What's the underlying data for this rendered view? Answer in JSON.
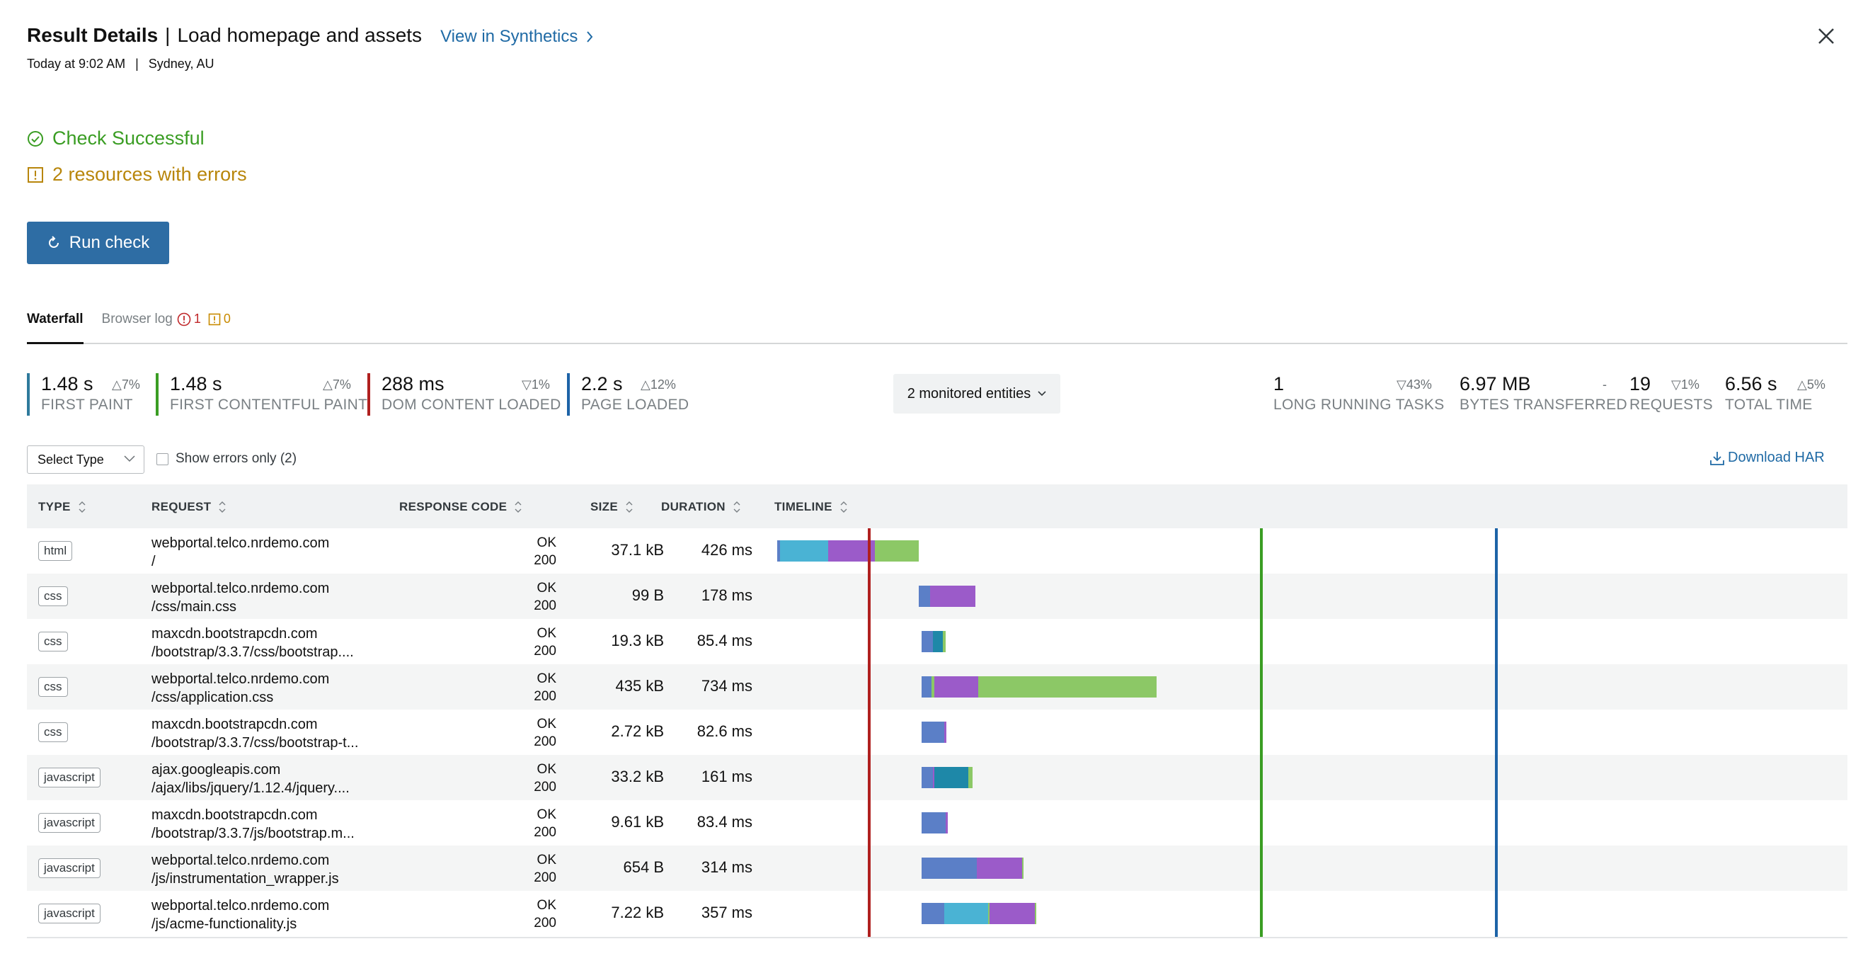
{
  "header": {
    "title": "Result Details",
    "separator": "|",
    "monitor_name": "Load homepage and assets",
    "link_label": "View in Synthetics",
    "timestamp": "Today at 9:02 AM",
    "pipe": "|",
    "location": "Sydney, AU"
  },
  "status": {
    "success_label": "Check Successful",
    "errors_label": "2 resources with errors",
    "success_color": "#3a9d23",
    "error_color": "#b8860b"
  },
  "run_button": {
    "label": "Run check"
  },
  "tabs": [
    {
      "label": "Waterfall"
    },
    {
      "label": "Browser log",
      "error_count": "1",
      "warning_count": "0"
    }
  ],
  "metrics": {
    "first_paint": {
      "value": "1.48 s",
      "delta": "7%",
      "label": "FIRST PAINT",
      "color": "#2f7a9c"
    },
    "first_contentful_paint": {
      "value": "1.48 s",
      "delta": "7%",
      "label": "FIRST CONTENTFUL PAINT",
      "color": "#3a9d23"
    },
    "dom_content_loaded": {
      "value": "288 ms",
      "delta": "1%",
      "label": "DOM CONTENT LOADED",
      "color": "#b0201f"
    },
    "page_loaded": {
      "value": "2.2 s",
      "delta": "12%",
      "label": "PAGE LOADED",
      "color": "#1d63a7"
    },
    "long_running_tasks": {
      "value": "1",
      "delta": "43%",
      "label": "LONG RUNNING TASKS"
    },
    "bytes_transferred": {
      "value": "6.97 MB",
      "delta": "-",
      "label": "BYTES TRANSFERRED"
    },
    "requests": {
      "value": "19",
      "delta": "1%",
      "label": "REQUESTS"
    },
    "total_time": {
      "value": "6.56 s",
      "delta": "5%",
      "label": "TOTAL TIME"
    }
  },
  "entities_button": {
    "label": "2 monitored entities"
  },
  "filters": {
    "select_type": "Select Type",
    "errors_only": "Show errors only (2)",
    "download_har": "Download HAR"
  },
  "table": {
    "columns": [
      "TYPE",
      "REQUEST",
      "RESPONSE CODE",
      "SIZE",
      "DURATION",
      "TIMELINE"
    ],
    "rows": [
      {
        "type": "html",
        "host": "webportal.telco.nrdemo.com",
        "path": "/",
        "status": "OK",
        "code": "200",
        "size": "37.1 kB",
        "duration": "426 ms"
      },
      {
        "type": "css",
        "host": "webportal.telco.nrdemo.com",
        "path": "/css/main.css",
        "status": "OK",
        "code": "200",
        "size": "99 B",
        "duration": "178 ms"
      },
      {
        "type": "css",
        "host": "maxcdn.bootstrapcdn.com",
        "path": "/bootstrap/3.3.7/css/bootstrap....",
        "status": "OK",
        "code": "200",
        "size": "19.3 kB",
        "duration": "85.4 ms"
      },
      {
        "type": "css",
        "host": "webportal.telco.nrdemo.com",
        "path": "/css/application.css",
        "status": "OK",
        "code": "200",
        "size": "435 kB",
        "duration": "734 ms"
      },
      {
        "type": "css",
        "host": "maxcdn.bootstrapcdn.com",
        "path": "/bootstrap/3.3.7/css/bootstrap-t...",
        "status": "OK",
        "code": "200",
        "size": "2.72 kB",
        "duration": "82.6 ms"
      },
      {
        "type": "javascript",
        "host": "ajax.googleapis.com",
        "path": "/ajax/libs/jquery/1.12.4/jquery....",
        "status": "OK",
        "code": "200",
        "size": "33.2 kB",
        "duration": "161 ms"
      },
      {
        "type": "javascript",
        "host": "maxcdn.bootstrapcdn.com",
        "path": "/bootstrap/3.3.7/js/bootstrap.m...",
        "status": "OK",
        "code": "200",
        "size": "9.61 kB",
        "duration": "83.4 ms"
      },
      {
        "type": "javascript",
        "host": "webportal.telco.nrdemo.com",
        "path": "/js/instrumentation_wrapper.js",
        "status": "OK",
        "code": "200",
        "size": "654 B",
        "duration": "314 ms"
      },
      {
        "type": "javascript",
        "host": "webportal.telco.nrdemo.com",
        "path": "/js/acme-functionality.js",
        "status": "OK",
        "code": "200",
        "size": "7.22 kB",
        "duration": "357 ms"
      }
    ]
  },
  "timeline_colors": {
    "blocked": "#5b7fc7",
    "dns": "#4ab3d4",
    "connect": "#1e88a8",
    "wait": "#9b5bc9",
    "receive": "#8cc866",
    "marker_dom": "#b0201f",
    "marker_fcp": "#3a9d23",
    "marker_load": "#1d63a7"
  }
}
